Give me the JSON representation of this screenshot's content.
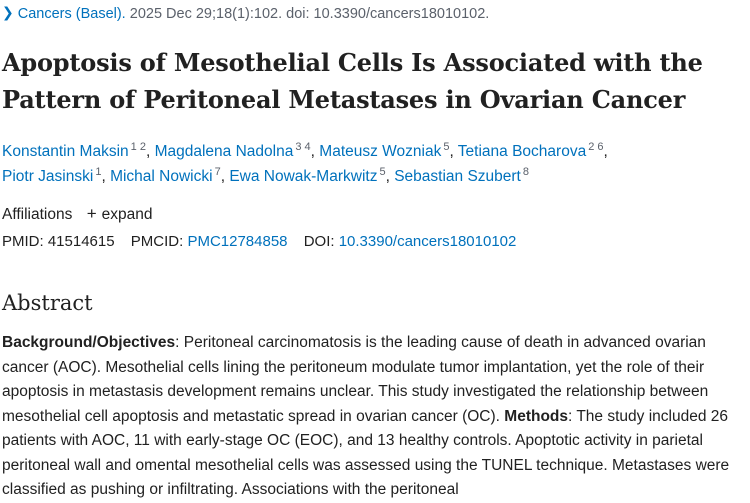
{
  "citation": {
    "journal": "Cancers (Basel).",
    "details": "2025 Dec 29;18(1):102. doi: 10.3390/cancers18010102."
  },
  "article": {
    "title": "Apoptosis of Mesothelial Cells Is Associated with the Pattern of Peritoneal Metastases in Ovarian Cancer"
  },
  "authors": [
    {
      "name": "Konstantin Maksin",
      "affs": [
        "1",
        "2"
      ]
    },
    {
      "name": "Magdalena Nadolna",
      "affs": [
        "3",
        "4"
      ]
    },
    {
      "name": "Mateusz Wozniak",
      "affs": [
        "5"
      ]
    },
    {
      "name": "Tetiana Bocharova",
      "affs": [
        "2",
        "6"
      ]
    },
    {
      "name": "Piotr Jasinski",
      "affs": [
        "1"
      ]
    },
    {
      "name": "Michal Nowicki",
      "affs": [
        "7"
      ]
    },
    {
      "name": "Ewa Nowak-Markwitz",
      "affs": [
        "5"
      ]
    },
    {
      "name": "Sebastian Szubert",
      "affs": [
        "8"
      ]
    }
  ],
  "affiliations": {
    "label": "Affiliations",
    "expand_label": "expand"
  },
  "identifiers": {
    "pmid_label": "PMID:",
    "pmid": "41514615",
    "pmcid_label": "PMCID:",
    "pmcid": "PMC12784858",
    "doi_label": "DOI:",
    "doi": "10.3390/cancers18010102"
  },
  "abstract": {
    "heading": "Abstract",
    "background_label": "Background/Objectives",
    "background_text": ": Peritoneal carcinomatosis is the leading cause of death in advanced ovarian cancer (AOC). Mesothelial cells lining the peritoneum modulate tumor implantation, yet the role of their apoptosis in metastasis development remains unclear. This study investigated the relationship between mesothelial cell apoptosis and metastatic spread in ovarian cancer (OC).",
    "methods_label": "Methods",
    "methods_text": ": The study included 26 patients with AOC, 11 with early-stage OC (EOC), and 13 healthy controls. Apoptotic activity in parietal peritoneal wall and omental mesothelial cells was assessed using the TUNEL technique. Metastases were classified as pushing or infiltrating. Associations with the peritoneal"
  },
  "colors": {
    "link": "#0071bc",
    "text": "#212121",
    "muted": "#5b616b"
  }
}
